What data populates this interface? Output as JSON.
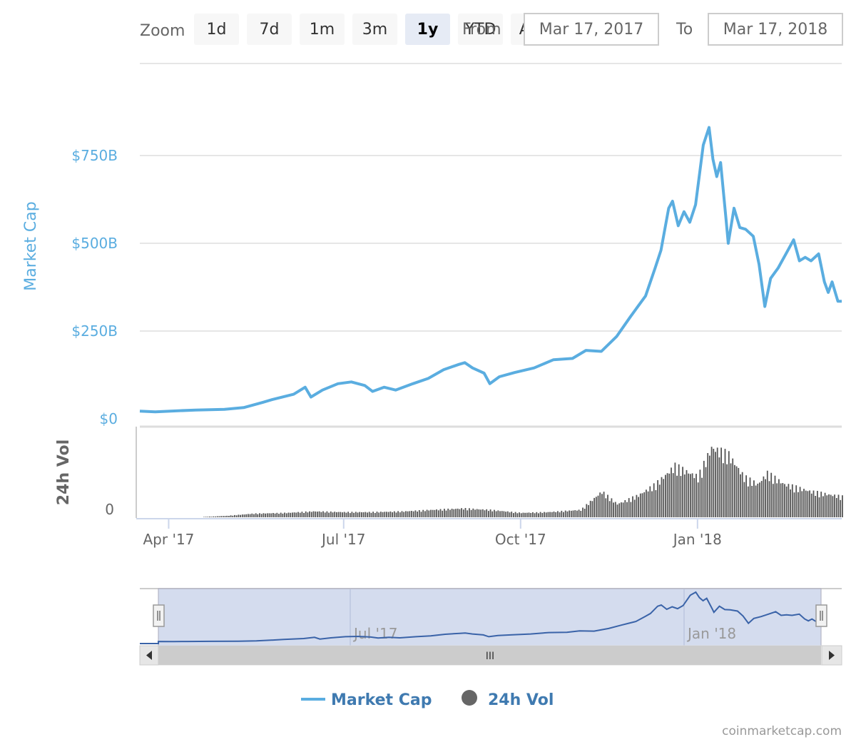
{
  "toolbar": {
    "zoom_label": "Zoom",
    "buttons": [
      "1d",
      "7d",
      "1m",
      "3m",
      "1y",
      "YTD",
      "ALL"
    ],
    "selected": "1y",
    "from_label": "From",
    "to_label": "To",
    "from_value": "Mar 17, 2017",
    "to_value": "Mar 17, 2018"
  },
  "chart_data": {
    "type": "line",
    "title": "",
    "ylabel": "Market Cap",
    "ylabel2": "24h Vol",
    "ylim": [
      0,
      850
    ],
    "y_unit": "B",
    "y_ticks": [
      "$0",
      "$250B",
      "$500B",
      "$750B"
    ],
    "y_tick_values": [
      0,
      250,
      500,
      750
    ],
    "vol_ticks": [
      "0"
    ],
    "x_tick_labels": [
      "Apr '17",
      "Jul '17",
      "Oct '17",
      "Jan '18"
    ],
    "x_tick_dates": [
      "2017-04-01",
      "2017-07-01",
      "2017-10-01",
      "2018-01-01"
    ],
    "x_range": [
      "2017-03-17",
      "2018-03-17"
    ],
    "series": [
      {
        "name": "Market Cap",
        "color": "#5aade0",
        "points": [
          [
            "2017-03-17",
            22
          ],
          [
            "2017-03-25",
            20
          ],
          [
            "2017-04-02",
            22
          ],
          [
            "2017-04-15",
            25
          ],
          [
            "2017-04-30",
            27
          ],
          [
            "2017-05-10",
            32
          ],
          [
            "2017-05-20",
            47
          ],
          [
            "2017-05-25",
            55
          ],
          [
            "2017-06-05",
            70
          ],
          [
            "2017-06-11",
            90
          ],
          [
            "2017-06-14",
            62
          ],
          [
            "2017-06-20",
            82
          ],
          [
            "2017-06-28",
            100
          ],
          [
            "2017-07-05",
            105
          ],
          [
            "2017-07-12",
            95
          ],
          [
            "2017-07-16",
            78
          ],
          [
            "2017-07-22",
            90
          ],
          [
            "2017-07-28",
            82
          ],
          [
            "2017-08-06",
            100
          ],
          [
            "2017-08-14",
            115
          ],
          [
            "2017-08-22",
            140
          ],
          [
            "2017-08-30",
            155
          ],
          [
            "2017-09-02",
            160
          ],
          [
            "2017-09-06",
            145
          ],
          [
            "2017-09-12",
            130
          ],
          [
            "2017-09-15",
            100
          ],
          [
            "2017-09-20",
            120
          ],
          [
            "2017-09-28",
            132
          ],
          [
            "2017-10-08",
            145
          ],
          [
            "2017-10-18",
            168
          ],
          [
            "2017-10-28",
            172
          ],
          [
            "2017-11-04",
            195
          ],
          [
            "2017-11-12",
            192
          ],
          [
            "2017-11-20",
            235
          ],
          [
            "2017-11-27",
            290
          ],
          [
            "2017-12-01",
            320
          ],
          [
            "2017-12-05",
            350
          ],
          [
            "2017-12-10",
            430
          ],
          [
            "2017-12-13",
            480
          ],
          [
            "2017-12-17",
            600
          ],
          [
            "2017-12-19",
            620
          ],
          [
            "2017-12-22",
            550
          ],
          [
            "2017-12-25",
            590
          ],
          [
            "2017-12-28",
            560
          ],
          [
            "2017-12-31",
            610
          ],
          [
            "2018-01-04",
            780
          ],
          [
            "2018-01-07",
            830
          ],
          [
            "2018-01-09",
            740
          ],
          [
            "2018-01-11",
            690
          ],
          [
            "2018-01-13",
            730
          ],
          [
            "2018-01-16",
            560
          ],
          [
            "2018-01-17",
            500
          ],
          [
            "2018-01-20",
            600
          ],
          [
            "2018-01-23",
            545
          ],
          [
            "2018-01-26",
            540
          ],
          [
            "2018-01-30",
            520
          ],
          [
            "2018-02-02",
            440
          ],
          [
            "2018-02-05",
            320
          ],
          [
            "2018-02-08",
            400
          ],
          [
            "2018-02-12",
            430
          ],
          [
            "2018-02-16",
            470
          ],
          [
            "2018-02-20",
            510
          ],
          [
            "2018-02-23",
            450
          ],
          [
            "2018-02-26",
            460
          ],
          [
            "2018-03-01",
            450
          ],
          [
            "2018-03-05",
            470
          ],
          [
            "2018-03-08",
            390
          ],
          [
            "2018-03-10",
            360
          ],
          [
            "2018-03-12",
            390
          ],
          [
            "2018-03-15",
            335
          ],
          [
            "2018-03-17",
            335
          ]
        ]
      },
      {
        "name": "24h Vol",
        "color": "#666666",
        "type": "bar",
        "note_units": "relative",
        "points": [
          [
            "2017-03-17",
            0.0
          ],
          [
            "2017-04-15",
            0.0
          ],
          [
            "2017-05-01",
            0.02
          ],
          [
            "2017-05-15",
            0.05
          ],
          [
            "2017-06-01",
            0.06
          ],
          [
            "2017-06-15",
            0.08
          ],
          [
            "2017-07-01",
            0.07
          ],
          [
            "2017-07-15",
            0.07
          ],
          [
            "2017-08-01",
            0.08
          ],
          [
            "2017-08-15",
            0.1
          ],
          [
            "2017-09-01",
            0.12
          ],
          [
            "2017-09-15",
            0.1
          ],
          [
            "2017-10-01",
            0.06
          ],
          [
            "2017-10-15",
            0.07
          ],
          [
            "2017-11-01",
            0.1
          ],
          [
            "2017-11-12",
            0.35
          ],
          [
            "2017-11-20",
            0.18
          ],
          [
            "2017-12-01",
            0.3
          ],
          [
            "2017-12-10",
            0.45
          ],
          [
            "2017-12-20",
            0.7
          ],
          [
            "2018-01-01",
            0.55
          ],
          [
            "2018-01-08",
            0.95
          ],
          [
            "2018-01-17",
            0.85
          ],
          [
            "2018-01-25",
            0.55
          ],
          [
            "2018-02-01",
            0.45
          ],
          [
            "2018-02-06",
            0.6
          ],
          [
            "2018-02-15",
            0.45
          ],
          [
            "2018-03-01",
            0.35
          ],
          [
            "2018-03-17",
            0.28
          ]
        ]
      }
    ],
    "legend": [
      "Market Cap",
      "24h Vol"
    ],
    "legend_position": "bottom",
    "navigator_labels": [
      "Jul '17",
      "Jan '18"
    ],
    "navigator_scroll_glyph": "III",
    "credits": "coinmarketcap.com"
  }
}
